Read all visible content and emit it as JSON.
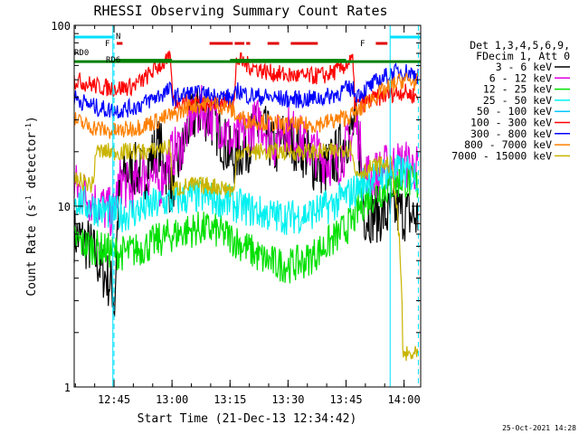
{
  "chart_data": {
    "type": "line",
    "title": "RHESSI Observing Summary Count Rates",
    "xlabel": "Start Time (21-Dec-13 12:34:42)",
    "ylabel_main": "Count Rate (s",
    "ylabel_exp1": "-1",
    "ylabel_mid": " detector",
    "ylabel_exp2": "-1",
    "ylabel_end": ")",
    "yscale": "log",
    "ylim": [
      1,
      100
    ],
    "xlim_minutes": [
      0,
      89.6
    ],
    "x_ticks": [
      {
        "label": "12:45",
        "minute": 10.3
      },
      {
        "label": "13:00",
        "minute": 25.3
      },
      {
        "label": "13:15",
        "minute": 40.3
      },
      {
        "label": "13:30",
        "minute": 55.3
      },
      {
        "label": "13:45",
        "minute": 70.3
      },
      {
        "label": "14:00",
        "minute": 85.3
      }
    ],
    "y_ticks": [
      {
        "label": "1",
        "value": 1
      },
      {
        "label": "10",
        "value": 10
      },
      {
        "label": "100",
        "value": 100
      }
    ],
    "legend_header": [
      "Det 1,3,4,5,6,9,",
      "FDecim 1, Att 0"
    ],
    "legend_placement": "right",
    "series": [
      {
        "name": "3 - 6 keV",
        "color": "#000000",
        "x": [
          0,
          4,
          7,
          10,
          10.5,
          12,
          15,
          18,
          22,
          25,
          28,
          30,
          33,
          36,
          39,
          41,
          45,
          48,
          52,
          54,
          58,
          62,
          65,
          68,
          71,
          73,
          75,
          78,
          80,
          81,
          83,
          86,
          89
        ],
        "y": [
          7,
          6,
          4.5,
          3.5,
          2.6,
          14,
          16,
          15,
          22,
          12,
          20,
          30,
          34,
          29,
          22,
          18,
          22,
          28,
          20,
          24,
          22,
          17,
          16,
          19,
          25,
          28,
          9,
          9,
          9,
          8.8,
          9.5,
          9,
          8.5
        ]
      },
      {
        "name": "6 - 12 keV",
        "color": "#e000e0",
        "x": [
          0,
          4,
          7,
          10,
          12,
          15,
          18,
          22,
          25,
          28,
          30,
          33,
          36,
          39,
          41,
          45,
          48,
          52,
          54,
          58,
          62,
          65,
          68,
          71,
          73,
          75,
          78,
          80,
          83,
          86,
          89
        ],
        "y": [
          13,
          11,
          10,
          9,
          14,
          12,
          16,
          13,
          19,
          22,
          30,
          34,
          31,
          26,
          22,
          26,
          30,
          22,
          28,
          24,
          20,
          18,
          17,
          22,
          28,
          15,
          15,
          16,
          17,
          17,
          16
        ]
      },
      {
        "name": "12 - 25 keV",
        "color": "#00e000",
        "x": [
          0,
          4,
          7,
          10,
          13,
          16,
          20,
          24,
          28,
          32,
          36,
          40,
          44,
          48,
          52,
          56,
          60,
          64,
          68,
          72,
          74,
          76,
          79,
          82,
          85,
          89
        ],
        "y": [
          6.5,
          6,
          5.8,
          5.6,
          5.5,
          5.7,
          6.2,
          6.8,
          7.2,
          7.5,
          7.4,
          6.8,
          6,
          5.2,
          4.8,
          4.7,
          5,
          5.8,
          6.8,
          8.2,
          10,
          11,
          12,
          13,
          14,
          13
        ]
      },
      {
        "name": "25 - 50 keV",
        "color": "#00f0f0",
        "x": [
          0,
          4,
          7,
          10,
          13,
          16,
          20,
          24,
          28,
          32,
          36,
          40,
          44,
          48,
          52,
          56,
          60,
          64,
          68,
          72,
          74,
          76,
          79,
          82,
          85,
          89
        ],
        "y": [
          11,
          10,
          9.5,
          9.2,
          9,
          9.4,
          10,
          10.6,
          11,
          11.3,
          11,
          10.4,
          9.8,
          9.2,
          8.8,
          8.7,
          9,
          9.6,
          10.5,
          12,
          13,
          14,
          15,
          15.5,
          15.5,
          14.5
        ]
      },
      {
        "name": "50 - 100 keV",
        "color": "#00c8ff",
        "x": [
          0,
          89
        ],
        "y": [
          null,
          null
        ]
      },
      {
        "name": "100 - 300 keV",
        "color": "#ff0000",
        "x": [
          0,
          3,
          6,
          9,
          12,
          15,
          18,
          20,
          22,
          24,
          25,
          25.3,
          26,
          30,
          35,
          40,
          41.5,
          42,
          45,
          50,
          55,
          60,
          65,
          68,
          70,
          72,
          72.5,
          74,
          76,
          79,
          82,
          85,
          89
        ],
        "y": [
          50,
          48,
          46,
          45,
          45,
          46,
          50,
          55,
          60,
          63,
          65,
          40,
          38,
          38,
          37,
          38,
          38,
          65,
          60,
          55,
          53,
          52,
          53,
          56,
          60,
          64,
          38,
          36,
          38,
          40,
          42,
          43,
          40
        ]
      },
      {
        "name": "300 - 800 keV",
        "color": "#0000ff",
        "x": [
          0,
          3,
          6,
          9,
          12,
          15,
          18,
          20,
          22,
          24,
          25,
          25.3,
          26,
          30,
          35,
          40,
          41.5,
          42,
          45,
          50,
          55,
          60,
          65,
          68,
          70,
          72,
          72.5,
          74,
          76,
          79,
          82,
          85,
          89
        ],
        "y": [
          40,
          37,
          35,
          34,
          34,
          35,
          37,
          39,
          41,
          43,
          44,
          40,
          40,
          42,
          41,
          40,
          39,
          44,
          41,
          40,
          39,
          39,
          40,
          42,
          44,
          45,
          42,
          42,
          45,
          50,
          54,
          56,
          53
        ]
      },
      {
        "name": "800 - 7000 keV",
        "color": "#ff8000",
        "x": [
          0,
          3,
          6,
          9,
          12,
          15,
          18,
          20,
          22,
          24,
          25,
          25.3,
          26,
          30,
          35,
          40,
          41.5,
          42,
          45,
          50,
          55,
          60,
          65,
          68,
          70,
          72,
          72.5,
          74,
          76,
          79,
          82,
          85,
          89
        ],
        "y": [
          30,
          28,
          27,
          26,
          26,
          27,
          28,
          29,
          30,
          31,
          32,
          31,
          32,
          36,
          37,
          35,
          33,
          31,
          30,
          29,
          28,
          28,
          29,
          30,
          31,
          32,
          32,
          34,
          38,
          42,
          46,
          50,
          48
        ]
      },
      {
        "name": "7000 - 15000 keV",
        "color": "#c8b400",
        "x": [
          0,
          3,
          5,
          5.5,
          6,
          9,
          12,
          15,
          18,
          20,
          22,
          24,
          25,
          25.3,
          26,
          30,
          35,
          40,
          41.5,
          42,
          45,
          50,
          55,
          60,
          65,
          68,
          70,
          72,
          72.5,
          74,
          76,
          79,
          82,
          85,
          87,
          89
        ],
        "y": [
          14,
          13.5,
          13,
          20,
          20,
          20,
          20,
          20,
          20,
          20,
          21,
          21,
          21,
          12,
          12.5,
          13,
          13,
          12.5,
          12,
          20,
          20,
          20,
          20,
          20,
          20,
          20,
          21,
          21,
          15,
          15.5,
          16,
          17,
          17,
          1.5,
          1.5,
          1.5
        ]
      }
    ],
    "annotations": {
      "rd0_label": "RD0",
      "rd6_label": "RD6",
      "n_label": "N",
      "f_label": "F",
      "f2_label": "F",
      "rd0_x": [
        0,
        89.6
      ],
      "rd0_y": 63,
      "rd6_segments": [
        [
          10.3,
          25.3
        ],
        [
          40.3,
          70.3
        ]
      ],
      "rd6_y": 63,
      "saa_intervals": [
        [
          0,
          10
        ],
        [
          81.7,
          89.6
        ]
      ],
      "saa_color": "#00e0ff",
      "flare_segments": [
        [
          11,
          12.5
        ],
        [
          35,
          41
        ],
        [
          41.5,
          44
        ],
        [
          44.5,
          45.5
        ],
        [
          50,
          53
        ],
        [
          56,
          63
        ],
        [
          78,
          81
        ]
      ],
      "flare_color": "#e00000",
      "att_segments": [
        [
          36,
          36.5
        ]
      ],
      "dashed_x_minutes": [
        10.3,
        89
      ]
    },
    "footer_date": "25-Oct-2021 14:28"
  }
}
